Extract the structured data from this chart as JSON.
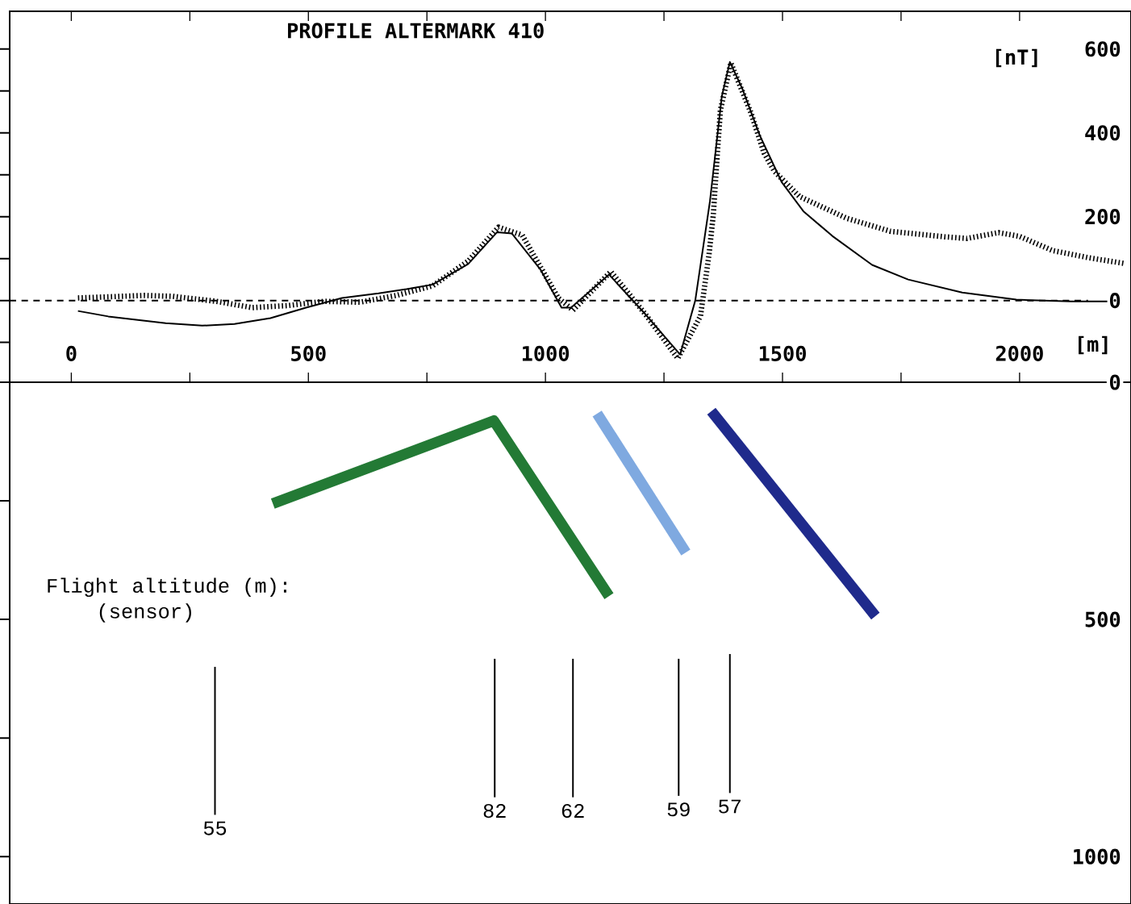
{
  "chart_data": [
    {
      "type": "line",
      "title": "PROFILE ALTERMARK 410",
      "xlabel": "[m]",
      "ylabel": "[nT]",
      "xlim": [
        -130,
        2235
      ],
      "ylim": [
        -195,
        690
      ],
      "xticks": [
        0,
        {
          "value": 250,
          "label": null
        },
        500,
        {
          "value": 750,
          "label": null
        },
        1000,
        {
          "value": 1250,
          "label": null
        },
        1500,
        {
          "value": 1750,
          "label": null
        },
        2000
      ],
      "yticks": [
        {
          "value": -100,
          "label": null
        },
        0,
        {
          "value": 100,
          "label": null
        },
        200,
        {
          "value": 300,
          "label": null
        },
        400,
        {
          "value": 500,
          "label": null
        },
        600
      ],
      "ref_lines": [
        {
          "axis": "y",
          "value": 0,
          "line_style": "dashed",
          "color": "#000000"
        }
      ],
      "series": [
        {
          "color": "#000000",
          "line_style": "dotted",
          "x": [
            14,
            153,
            214,
            306,
            381,
            457,
            534,
            609,
            685,
            762,
            837,
            901,
            951,
            1027,
            1058,
            1138,
            1211,
            1279,
            1327,
            1345,
            1354,
            1361,
            1369,
            1391,
            1434,
            1461,
            1483,
            1536,
            1636,
            1728,
            1842,
            1889,
            1956,
            2000,
            2070,
            2146,
            2223
          ],
          "values": [
            6,
            12,
            10,
            -2,
            -17,
            -12,
            -2,
            -4,
            12,
            35,
            94,
            175,
            156,
            6,
            -23,
            69,
            -33,
            -138,
            -37,
            110,
            204,
            325,
            454,
            567,
            446,
            352,
            308,
            248,
            196,
            165,
            152,
            148,
            162,
            153,
            119,
            102,
            88
          ]
        },
        {
          "color": "#000000",
          "line_style": "solid",
          "x": [
            14,
            78,
            199,
            276,
            344,
            420,
            495,
            571,
            648,
            707,
            762,
            837,
            898,
            929,
            990,
            1034,
            1054,
            1134,
            1211,
            1284,
            1316,
            1347,
            1372,
            1389,
            1415,
            1452,
            1498,
            1544,
            1605,
            1689,
            1765,
            1879,
            1993,
            2109,
            2185
          ],
          "values": [
            -25,
            -38,
            -54,
            -60,
            -56,
            -42,
            -17,
            6,
            17,
            27,
            38,
            87,
            163,
            160,
            73,
            -17,
            -17,
            62,
            -33,
            -129,
            0,
            237,
            487,
            569,
            506,
            394,
            283,
            213,
            154,
            85,
            50,
            19,
            2,
            -2,
            -2
          ]
        }
      ]
    },
    {
      "type": "line",
      "xlim": [
        -130,
        2235
      ],
      "ylim": [
        1100,
        0
      ],
      "tick_labels": "y",
      "yticks": [
        0,
        {
          "value": 250,
          "label": null
        },
        500,
        {
          "value": 750,
          "label": null
        },
        1000
      ],
      "annotations": [
        "Flight altitude (m):",
        "(sensor)"
      ],
      "series": [
        {
          "color": "#237a35",
          "x": [
            425,
            891,
            1134
          ],
          "values": [
            256,
            81,
            451
          ]
        },
        {
          "color": "#7fa9e0",
          "x": [
            1109,
            1296
          ],
          "values": [
            66,
            359
          ]
        },
        {
          "color": "#1f2a8c",
          "x": [
            1350,
            1696
          ],
          "values": [
            61,
            493
          ]
        },
        {
          "name": "55",
          "color": "#000000",
          "line_style": "solid",
          "x": [
            303,
            303
          ],
          "values": [
            600,
            912
          ]
        },
        {
          "name": "82",
          "color": "#000000",
          "line_style": "solid",
          "x": [
            893,
            893
          ],
          "values": [
            583,
            875
          ]
        },
        {
          "name": "62",
          "color": "#000000",
          "line_style": "solid",
          "x": [
            1058,
            1058
          ],
          "values": [
            583,
            875
          ]
        },
        {
          "name": "59",
          "color": "#000000",
          "line_style": "solid",
          "x": [
            1281,
            1281
          ],
          "values": [
            583,
            872
          ]
        },
        {
          "name": "57",
          "color": "#000000",
          "line_style": "solid",
          "x": [
            1389,
            1389
          ],
          "values": [
            573,
            866
          ]
        }
      ]
    }
  ]
}
